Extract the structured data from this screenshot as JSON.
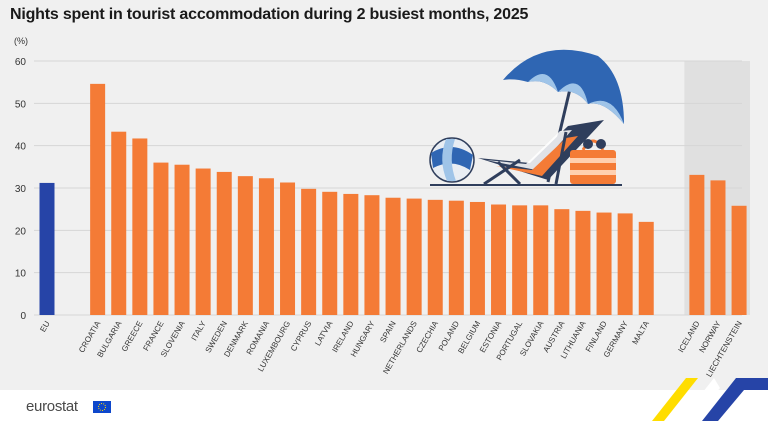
{
  "chart_data": {
    "type": "bar",
    "title": "Nights spent in tourist accommodation during 2 busiest months, 2025",
    "unit_label": "(%)",
    "ylim": [
      0,
      60
    ],
    "y_ticks": [
      0,
      10,
      20,
      30,
      40,
      50,
      60
    ],
    "grid": true,
    "groups": [
      {
        "name": "eu",
        "color": "#2644a7",
        "categories": [
          "EU"
        ],
        "values": [
          31.2
        ]
      },
      {
        "name": "member-states",
        "color": "#f47b36",
        "categories": [
          "CROATIA",
          "BULGARIA",
          "GREECE",
          "FRANCE",
          "SLOVENIA",
          "ITALY",
          "SWEDEN",
          "DENMARK",
          "ROMANIA",
          "LUXEMBOURG",
          "CYPRUS",
          "LATVIA",
          "IRELAND",
          "HUNGARY",
          "SPAIN",
          "NETHERLANDS",
          "CZECHIA",
          "POLAND",
          "BELGIUM",
          "ESTONIA",
          "PORTUGAL",
          "SLOVAKIA",
          "AUSTRIA",
          "LITHUANIA",
          "FINLAND",
          "GERMANY",
          "MALTA"
        ],
        "values": [
          54.6,
          43.3,
          41.7,
          36.0,
          35.5,
          34.6,
          33.8,
          32.8,
          32.3,
          31.3,
          29.8,
          29.1,
          28.6,
          28.3,
          27.7,
          27.5,
          27.2,
          27.0,
          26.7,
          26.1,
          25.9,
          25.9,
          25.0,
          24.6,
          24.2,
          24.0,
          22.0
        ]
      },
      {
        "name": "efta",
        "color": "#f47b36",
        "shaded": true,
        "categories": [
          "ICELAND",
          "NORWAY",
          "LIECHTENSTEIN"
        ],
        "values": [
          33.1,
          31.8,
          25.8
        ]
      }
    ]
  },
  "footer": {
    "brand": "eurostat"
  },
  "colors": {
    "background": "#f0f0f0",
    "gridline": "#d6d6d6",
    "shade": "#e0e0e0",
    "flag_blue": "#0e47cb",
    "flag_star": "#ffdd00"
  }
}
